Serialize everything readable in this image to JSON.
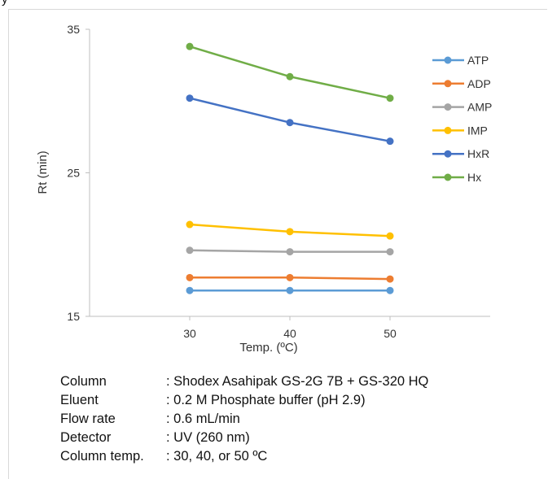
{
  "page": {
    "top_clip_text": "y"
  },
  "chart_data": {
    "type": "line",
    "x": [
      30,
      40,
      50
    ],
    "xlabel": "Temp. (ºC)",
    "ylabel": "Rt (min)",
    "xlim": [
      20,
      60
    ],
    "ylim": [
      15,
      35
    ],
    "x_ticks": [
      "30",
      "40",
      "50"
    ],
    "y_ticks": [
      "15",
      "25",
      "35"
    ],
    "grid": false,
    "legend": "right",
    "series": [
      {
        "name": "ATP",
        "color": "#5b9bd5",
        "values": [
          16.8,
          16.8,
          16.8
        ]
      },
      {
        "name": "ADP",
        "color": "#ed7d31",
        "values": [
          17.7,
          17.7,
          17.6
        ]
      },
      {
        "name": "AMP",
        "color": "#a5a5a5",
        "values": [
          19.6,
          19.5,
          19.5
        ]
      },
      {
        "name": "IMP",
        "color": "#ffc000",
        "values": [
          21.4,
          20.9,
          20.6
        ]
      },
      {
        "name": "HxR",
        "color": "#4472c4",
        "values": [
          30.2,
          28.5,
          27.2
        ]
      },
      {
        "name": "Hx",
        "color": "#70ad47",
        "values": [
          33.8,
          31.7,
          30.2
        ]
      }
    ]
  },
  "conditions": [
    {
      "label": "Column",
      "value": ": Shodex Asahipak GS-2G 7B + GS-320 HQ"
    },
    {
      "label": "Eluent",
      "value": ": 0.2 M Phosphate buffer  (pH 2.9)"
    },
    {
      "label": "Flow rate",
      "value": ": 0.6 mL/min"
    },
    {
      "label": "Detector",
      "value": ": UV (260 nm)"
    },
    {
      "label": "Column temp.",
      "value": ": 30, 40, or 50 ºC"
    }
  ]
}
